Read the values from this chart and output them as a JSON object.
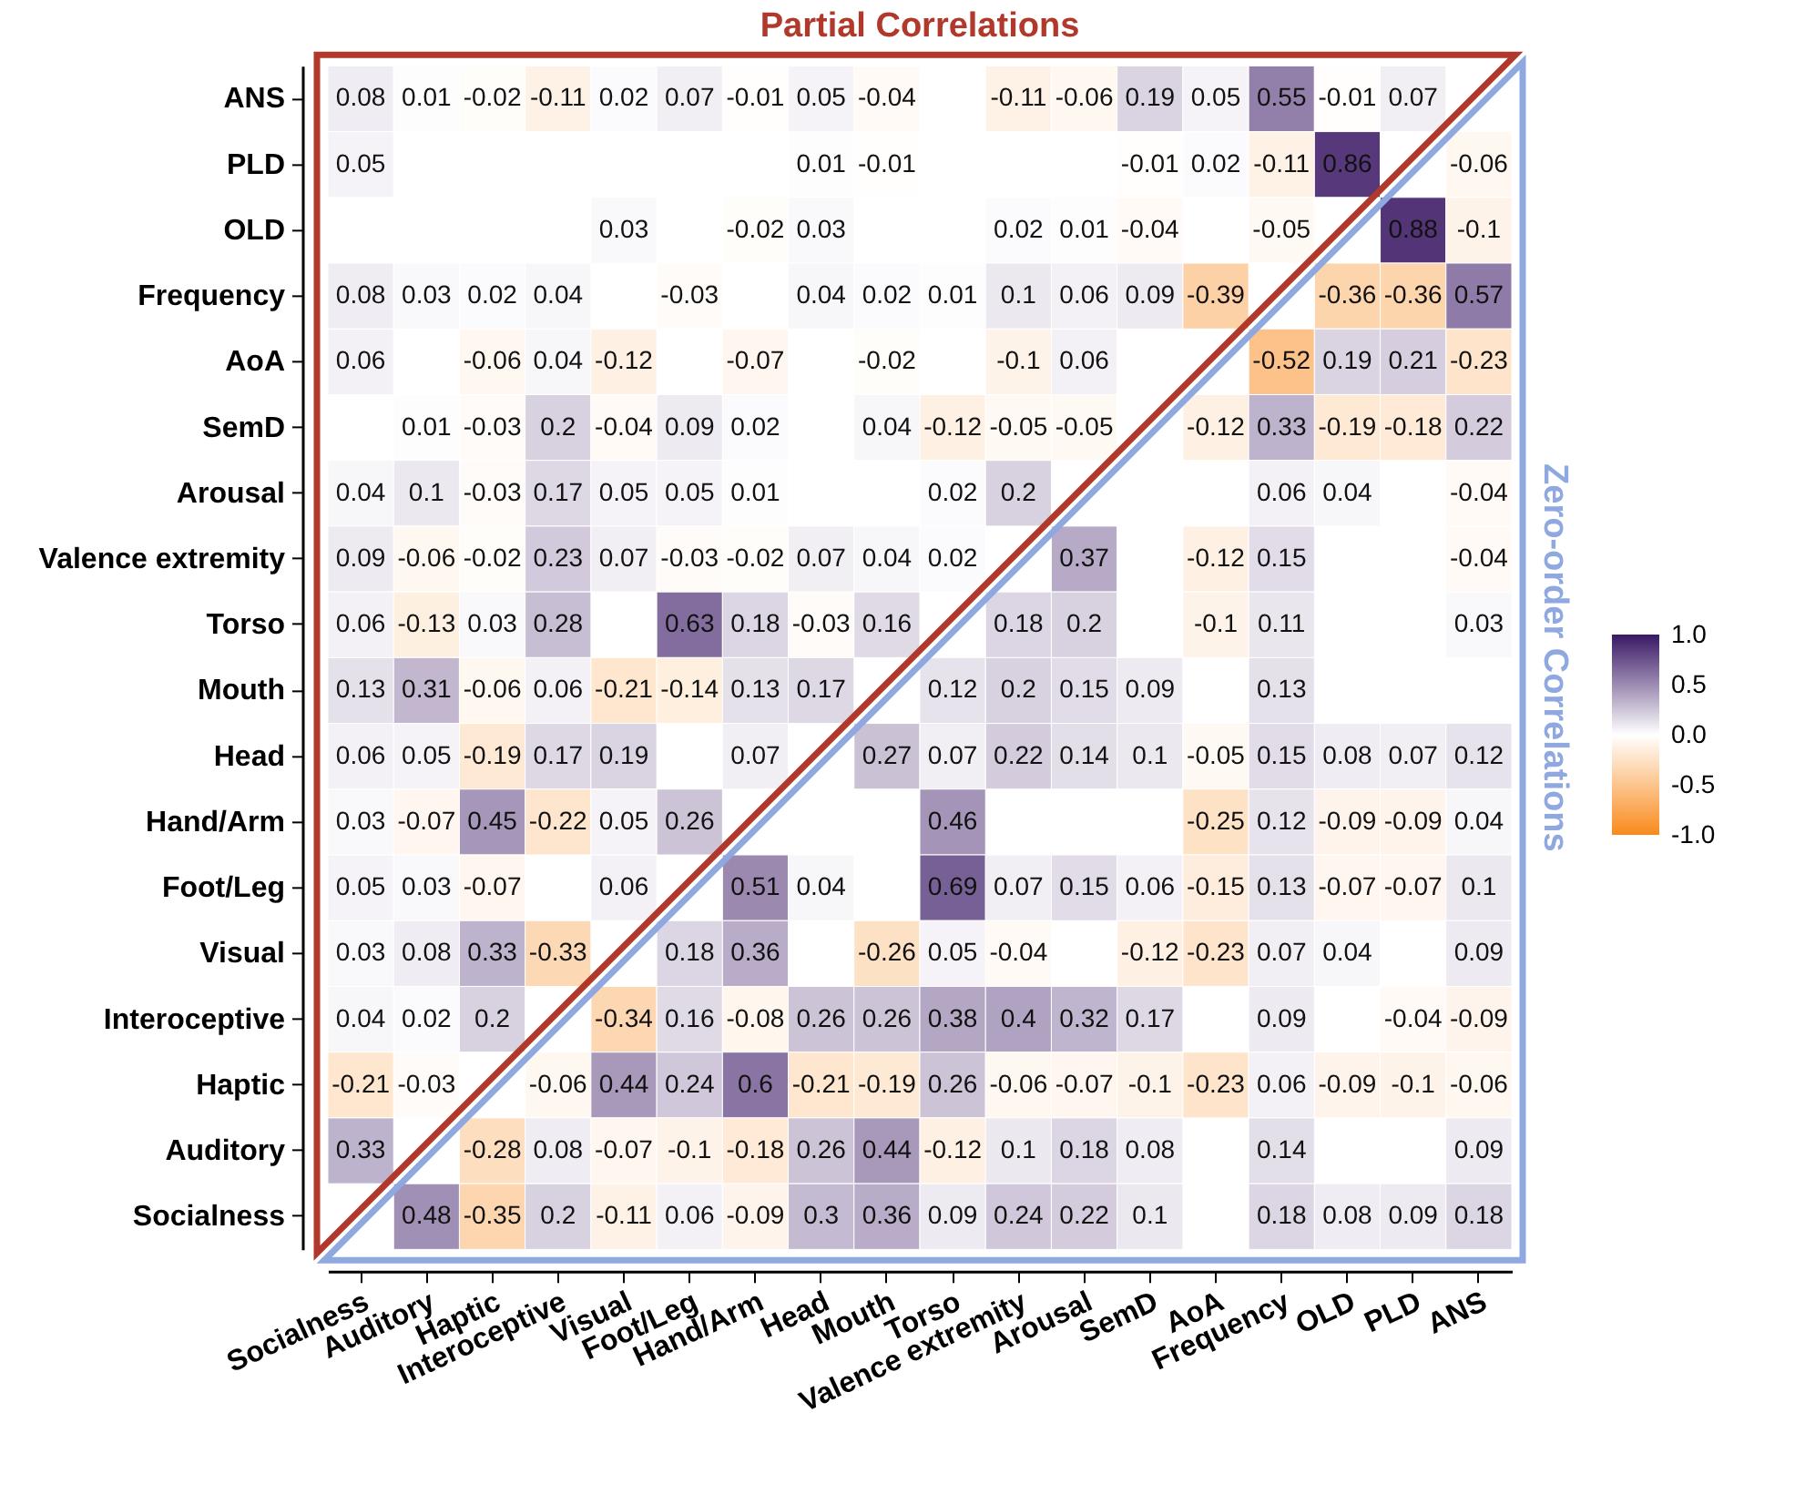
{
  "chart_data": {
    "type": "heatmap",
    "title": "Partial Correlations",
    "annotations": [
      "Zero-order Correlations"
    ],
    "categories": [
      "Socialness",
      "Auditory",
      "Haptic",
      "Interoceptive",
      "Visual",
      "Foot/Leg",
      "Hand/Arm",
      "Head",
      "Mouth",
      "Torso",
      "Valence extremity",
      "Arousal",
      "SemD",
      "AoA",
      "Frequency",
      "OLD",
      "PLD",
      "ANS"
    ],
    "y_categories": [
      "ANS",
      "PLD",
      "OLD",
      "Frequency",
      "AoA",
      "SemD",
      "Arousal",
      "Valence extremity",
      "Torso",
      "Mouth",
      "Head",
      "Hand/Arm",
      "Foot/Leg",
      "Visual",
      "Interoceptive",
      "Haptic",
      "Auditory",
      "Socialness"
    ],
    "cells": [
      [
        0.08,
        0.01,
        -0.02,
        -0.11,
        0.02,
        0.07,
        -0.01,
        0.05,
        -0.04,
        null,
        -0.11,
        -0.06,
        0.19,
        0.05,
        0.55,
        -0.01,
        0.07,
        null
      ],
      [
        0.05,
        null,
        null,
        null,
        null,
        null,
        null,
        0.01,
        -0.01,
        null,
        null,
        null,
        -0.01,
        0.02,
        -0.11,
        0.86,
        null,
        -0.06
      ],
      [
        null,
        null,
        null,
        null,
        0.03,
        null,
        -0.02,
        0.03,
        null,
        null,
        0.02,
        0.01,
        -0.04,
        null,
        -0.05,
        null,
        0.88,
        -0.1
      ],
      [
        0.08,
        0.03,
        0.02,
        0.04,
        null,
        -0.03,
        null,
        0.04,
        0.02,
        0.01,
        0.1,
        0.06,
        0.09,
        -0.39,
        null,
        -0.36,
        -0.36,
        0.57
      ],
      [
        0.06,
        null,
        -0.06,
        0.04,
        -0.12,
        null,
        -0.07,
        null,
        -0.02,
        null,
        -0.1,
        0.06,
        null,
        null,
        -0.52,
        0.19,
        0.21,
        -0.23
      ],
      [
        null,
        0.01,
        -0.03,
        0.2,
        -0.04,
        0.09,
        0.02,
        null,
        0.04,
        -0.12,
        -0.05,
        -0.05,
        null,
        -0.12,
        0.33,
        -0.19,
        -0.18,
        0.22
      ],
      [
        0.04,
        0.1,
        -0.03,
        0.17,
        0.05,
        0.05,
        0.01,
        null,
        null,
        0.02,
        0.2,
        null,
        null,
        null,
        0.06,
        0.04,
        null,
        -0.04
      ],
      [
        0.09,
        -0.06,
        -0.02,
        0.23,
        0.07,
        -0.03,
        -0.02,
        0.07,
        0.04,
        0.02,
        null,
        0.37,
        null,
        -0.12,
        0.15,
        null,
        null,
        -0.04
      ],
      [
        0.06,
        -0.13,
        0.03,
        0.28,
        null,
        0.63,
        0.18,
        -0.03,
        0.16,
        null,
        0.18,
        0.2,
        null,
        -0.1,
        0.11,
        null,
        null,
        0.03
      ],
      [
        0.13,
        0.31,
        -0.06,
        0.06,
        -0.21,
        -0.14,
        0.13,
        0.17,
        null,
        0.12,
        0.2,
        0.15,
        0.09,
        null,
        0.13,
        null,
        null,
        null
      ],
      [
        0.06,
        0.05,
        -0.19,
        0.17,
        0.19,
        null,
        0.07,
        null,
        0.27,
        0.07,
        0.22,
        0.14,
        0.1,
        -0.05,
        0.15,
        0.08,
        0.07,
        0.12
      ],
      [
        0.03,
        -0.07,
        0.45,
        -0.22,
        0.05,
        0.26,
        null,
        null,
        null,
        0.46,
        null,
        null,
        null,
        -0.25,
        0.12,
        -0.09,
        -0.09,
        0.04
      ],
      [
        0.05,
        0.03,
        -0.07,
        null,
        0.06,
        null,
        0.51,
        0.04,
        null,
        0.69,
        0.07,
        0.15,
        0.06,
        -0.15,
        0.13,
        -0.07,
        -0.07,
        0.1
      ],
      [
        0.03,
        0.08,
        0.33,
        -0.33,
        null,
        0.18,
        0.36,
        null,
        -0.26,
        0.05,
        -0.04,
        null,
        -0.12,
        -0.23,
        0.07,
        0.04,
        null,
        0.09
      ],
      [
        0.04,
        0.02,
        0.2,
        null,
        -0.34,
        0.16,
        -0.08,
        0.26,
        0.26,
        0.38,
        0.4,
        0.32,
        0.17,
        null,
        0.09,
        null,
        -0.04,
        -0.09
      ],
      [
        -0.21,
        -0.03,
        null,
        -0.06,
        0.44,
        0.24,
        0.6,
        -0.21,
        -0.19,
        0.26,
        -0.06,
        -0.07,
        -0.1,
        -0.23,
        0.06,
        -0.09,
        -0.1,
        -0.06
      ],
      [
        0.33,
        null,
        -0.28,
        0.08,
        -0.07,
        -0.1,
        -0.18,
        0.26,
        0.44,
        -0.12,
        0.1,
        0.18,
        0.08,
        null,
        0.14,
        null,
        null,
        0.09
      ],
      [
        null,
        0.48,
        -0.35,
        0.2,
        -0.11,
        0.06,
        -0.09,
        0.3,
        0.36,
        0.09,
        0.24,
        0.22,
        0.1,
        null,
        0.18,
        0.08,
        0.09,
        0.18
      ]
    ],
    "data_labels": true,
    "clim": [
      -1,
      1
    ],
    "cticks": [
      {
        "value": 1,
        "label": "1.0"
      },
      {
        "value": 0.5,
        "label": "0.5"
      },
      {
        "value": 0,
        "label": "0.0"
      },
      {
        "value": -0.5,
        "label": "-0.5"
      },
      {
        "value": -1,
        "label": "-1.0"
      }
    ]
  }
}
